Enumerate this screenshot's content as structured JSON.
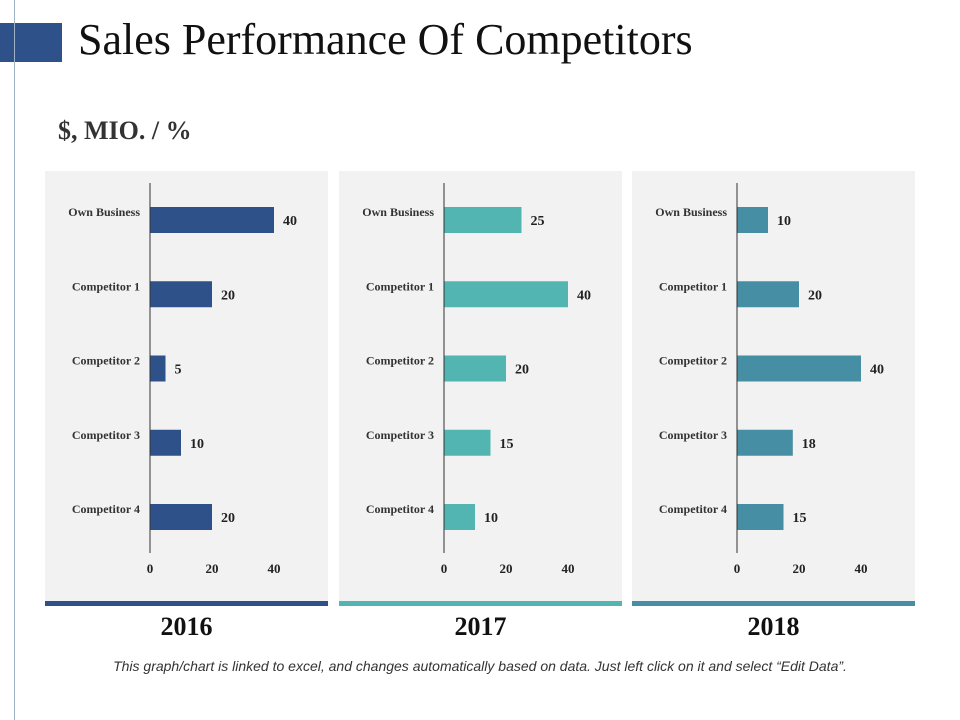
{
  "slide": {
    "title": "Sales Performance Of Competitors",
    "subtitle": "$, MIO. / %",
    "footnote": "This graph/chart is linked to excel, and changes automatically based on data. Just left click on it and select “Edit Data”."
  },
  "colors": {
    "accent": "#2f5189",
    "series": [
      "#2f5189",
      "#52b5b2",
      "#468ea3"
    ]
  },
  "chart_data": [
    {
      "type": "bar",
      "orientation": "horizontal",
      "title": "2016",
      "categories": [
        "Own Business",
        "Competitor 1",
        "Competitor 2",
        "Competitor 3",
        "Competitor 4"
      ],
      "values": [
        40,
        20,
        5,
        10,
        20
      ],
      "xlim": [
        0,
        40
      ],
      "xticks": [
        "0",
        "20",
        "40"
      ]
    },
    {
      "type": "bar",
      "orientation": "horizontal",
      "title": "2017",
      "categories": [
        "Own Business",
        "Competitor 1",
        "Competitor 2",
        "Competitor 3",
        "Competitor 4"
      ],
      "values": [
        25,
        40,
        20,
        15,
        10
      ],
      "xlim": [
        0,
        40
      ],
      "xticks": [
        "0",
        "20",
        "40"
      ]
    },
    {
      "type": "bar",
      "orientation": "horizontal",
      "title": "2018",
      "categories": [
        "Own Business",
        "Competitor 1",
        "Competitor 2",
        "Competitor 3",
        "Competitor 4"
      ],
      "values": [
        10,
        20,
        40,
        18,
        15
      ],
      "xlim": [
        0,
        40
      ],
      "xticks": [
        "0",
        "20",
        "40"
      ]
    }
  ]
}
